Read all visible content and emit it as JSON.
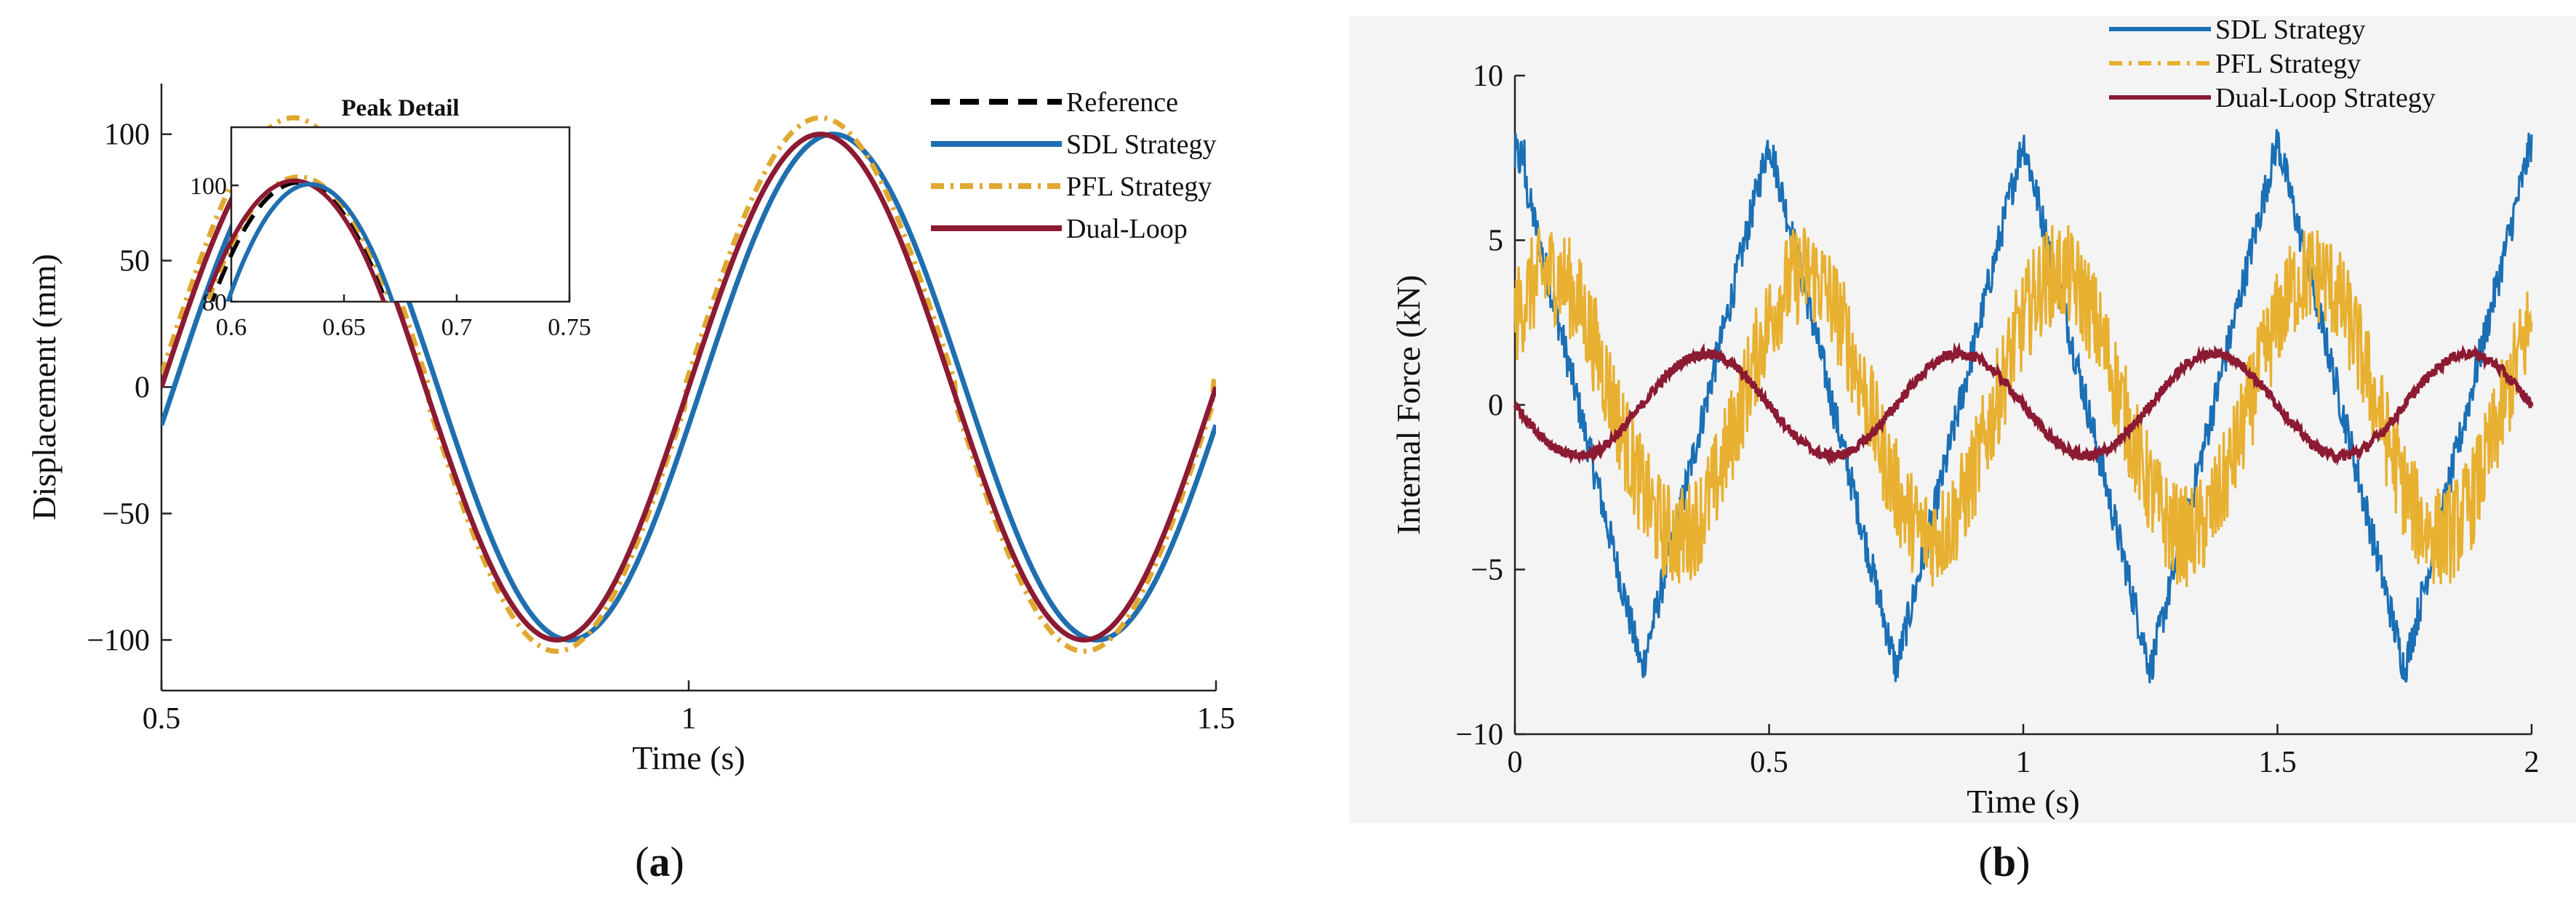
{
  "panels": {
    "a": {
      "label_open": "(",
      "label_letter": "a",
      "label_close": ")"
    },
    "b": {
      "label_open": "(",
      "label_letter": "b",
      "label_close": ")"
    }
  },
  "chart_data": [
    {
      "id": "a",
      "type": "line",
      "title": "",
      "xlabel": "Time (s)",
      "ylabel": "Displacement (mm)",
      "xlim": [
        0.5,
        1.5
      ],
      "ylim": [
        -120,
        120
      ],
      "xticks": [
        0.5,
        1,
        1.5
      ],
      "xtick_labels": [
        "0.5",
        "1",
        "1.5"
      ],
      "yticks": [
        -100,
        -50,
        0,
        50,
        100
      ],
      "ytick_labels": [
        "−100",
        "−50",
        "0",
        "50",
        "100"
      ],
      "legend_position": "top-right",
      "series": [
        {
          "name": "Reference",
          "style": "dashed",
          "color": "#000000",
          "model": {
            "amplitude": 100,
            "frequency_hz": 2,
            "phase_shift_s": 0.0,
            "offset": 0
          }
        },
        {
          "name": "SDL Strategy",
          "style": "solid",
          "color": "#1f6fb0",
          "model": {
            "amplitude": 100,
            "frequency_hz": 2,
            "phase_shift_s": 0.012,
            "offset": 0
          }
        },
        {
          "name": "PFL Strategy",
          "style": "dashdot",
          "color": "#e0a830",
          "model": {
            "amplitude": 101.5,
            "frequency_hz": 2,
            "phase_shift_s": 0.0,
            "offset": 5
          }
        },
        {
          "name": "Dual-Loop",
          "style": "solid",
          "color": "#8b1a32",
          "model": {
            "amplitude": 100,
            "frequency_hz": 2,
            "phase_shift_s": 0.0,
            "offset": 0
          }
        }
      ],
      "inset": {
        "title": "Peak Detail",
        "xlim": [
          0.6,
          0.75
        ],
        "ylim": [
          80,
          110
        ],
        "xticks": [
          0.6,
          0.65,
          0.7,
          0.75
        ],
        "xtick_labels": [
          "0.6",
          "0.65",
          "0.7",
          "0.75"
        ],
        "yticks": [
          80,
          100
        ],
        "ytick_labels": [
          "80",
          "100"
        ]
      }
    },
    {
      "id": "b",
      "type": "line",
      "title": "",
      "xlabel": "Time (s)",
      "ylabel": "Internal Force (kN)",
      "xlim": [
        0,
        2
      ],
      "ylim": [
        -10,
        10
      ],
      "xticks": [
        0,
        0.5,
        1,
        1.5,
        2
      ],
      "xtick_labels": [
        "0",
        "0.5",
        "1",
        "1.5",
        "2"
      ],
      "yticks": [
        -10,
        -5,
        0,
        5,
        10
      ],
      "ytick_labels": [
        "−10",
        "−5",
        "0",
        "5",
        "10"
      ],
      "legend_position": "top-right",
      "series": [
        {
          "name": "SDL Strategy",
          "style": "solid",
          "color": "#1a6fb5",
          "model": {
            "amplitude": 8.2,
            "frequency_hz": 2,
            "phase_offset_s": 0.0,
            "noise": 0.6
          }
        },
        {
          "name": "PFL Strategy",
          "style": "dashdot",
          "color": "#e8b030",
          "model": {
            "amplitude": 4.0,
            "frequency_hz": 2,
            "phase_offset_s": 0.07,
            "noise": 1.2
          }
        },
        {
          "name": "Dual-Loop Strategy",
          "style": "solid",
          "color": "#8b1a32",
          "model": {
            "amplitude": 1.55,
            "frequency_hz": 2,
            "phase_offset_s": 0.375,
            "noise": 0.15
          }
        }
      ]
    }
  ]
}
